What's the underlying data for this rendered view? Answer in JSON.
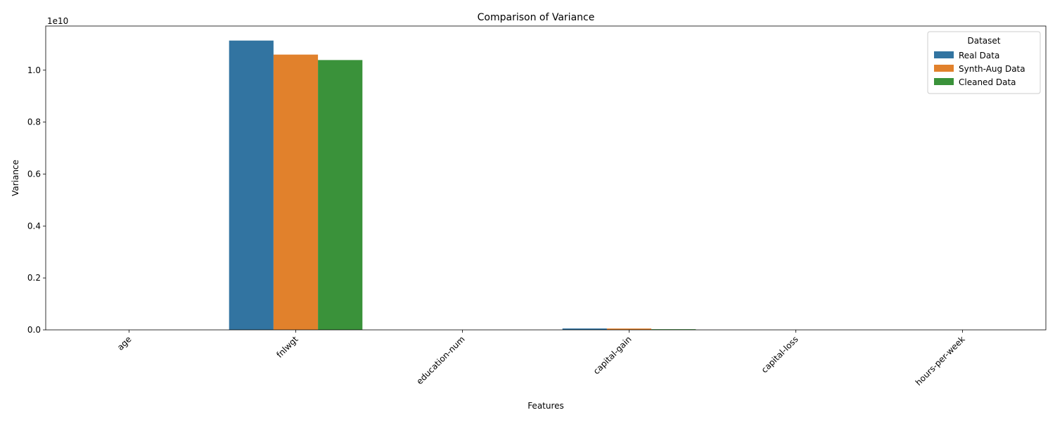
{
  "chart_data": {
    "type": "bar",
    "title": "Comparison of Variance",
    "xlabel": "Features",
    "ylabel": "Variance",
    "y_offset_label": "1e10",
    "categories": [
      "age",
      "fnlwgt",
      "education-num",
      "capital-gain",
      "capital-loss",
      "hours-per-week"
    ],
    "series": [
      {
        "name": "Real Data",
        "color": "#3274a1",
        "values": [
          186,
          11140000000,
          6.6,
          54000000,
          162000,
          152
        ]
      },
      {
        "name": "Synth-Aug Data",
        "color": "#e1812c",
        "values": [
          190,
          10600000000,
          6.8,
          52000000,
          158000,
          150
        ]
      },
      {
        "name": "Cleaned Data",
        "color": "#3a923a",
        "values": [
          180,
          10390000000,
          6.4,
          25000000,
          150000,
          148
        ]
      }
    ],
    "yticks": [
      0,
      2000000000,
      4000000000,
      6000000000,
      8000000000,
      10000000000
    ],
    "ytick_labels": [
      "0.0",
      "0.2",
      "0.4",
      "0.6",
      "0.8",
      "1.0"
    ],
    "ylim": [
      0,
      11700000000
    ],
    "legend": {
      "title": "Dataset",
      "placement": "top-right"
    },
    "grid": false
  }
}
